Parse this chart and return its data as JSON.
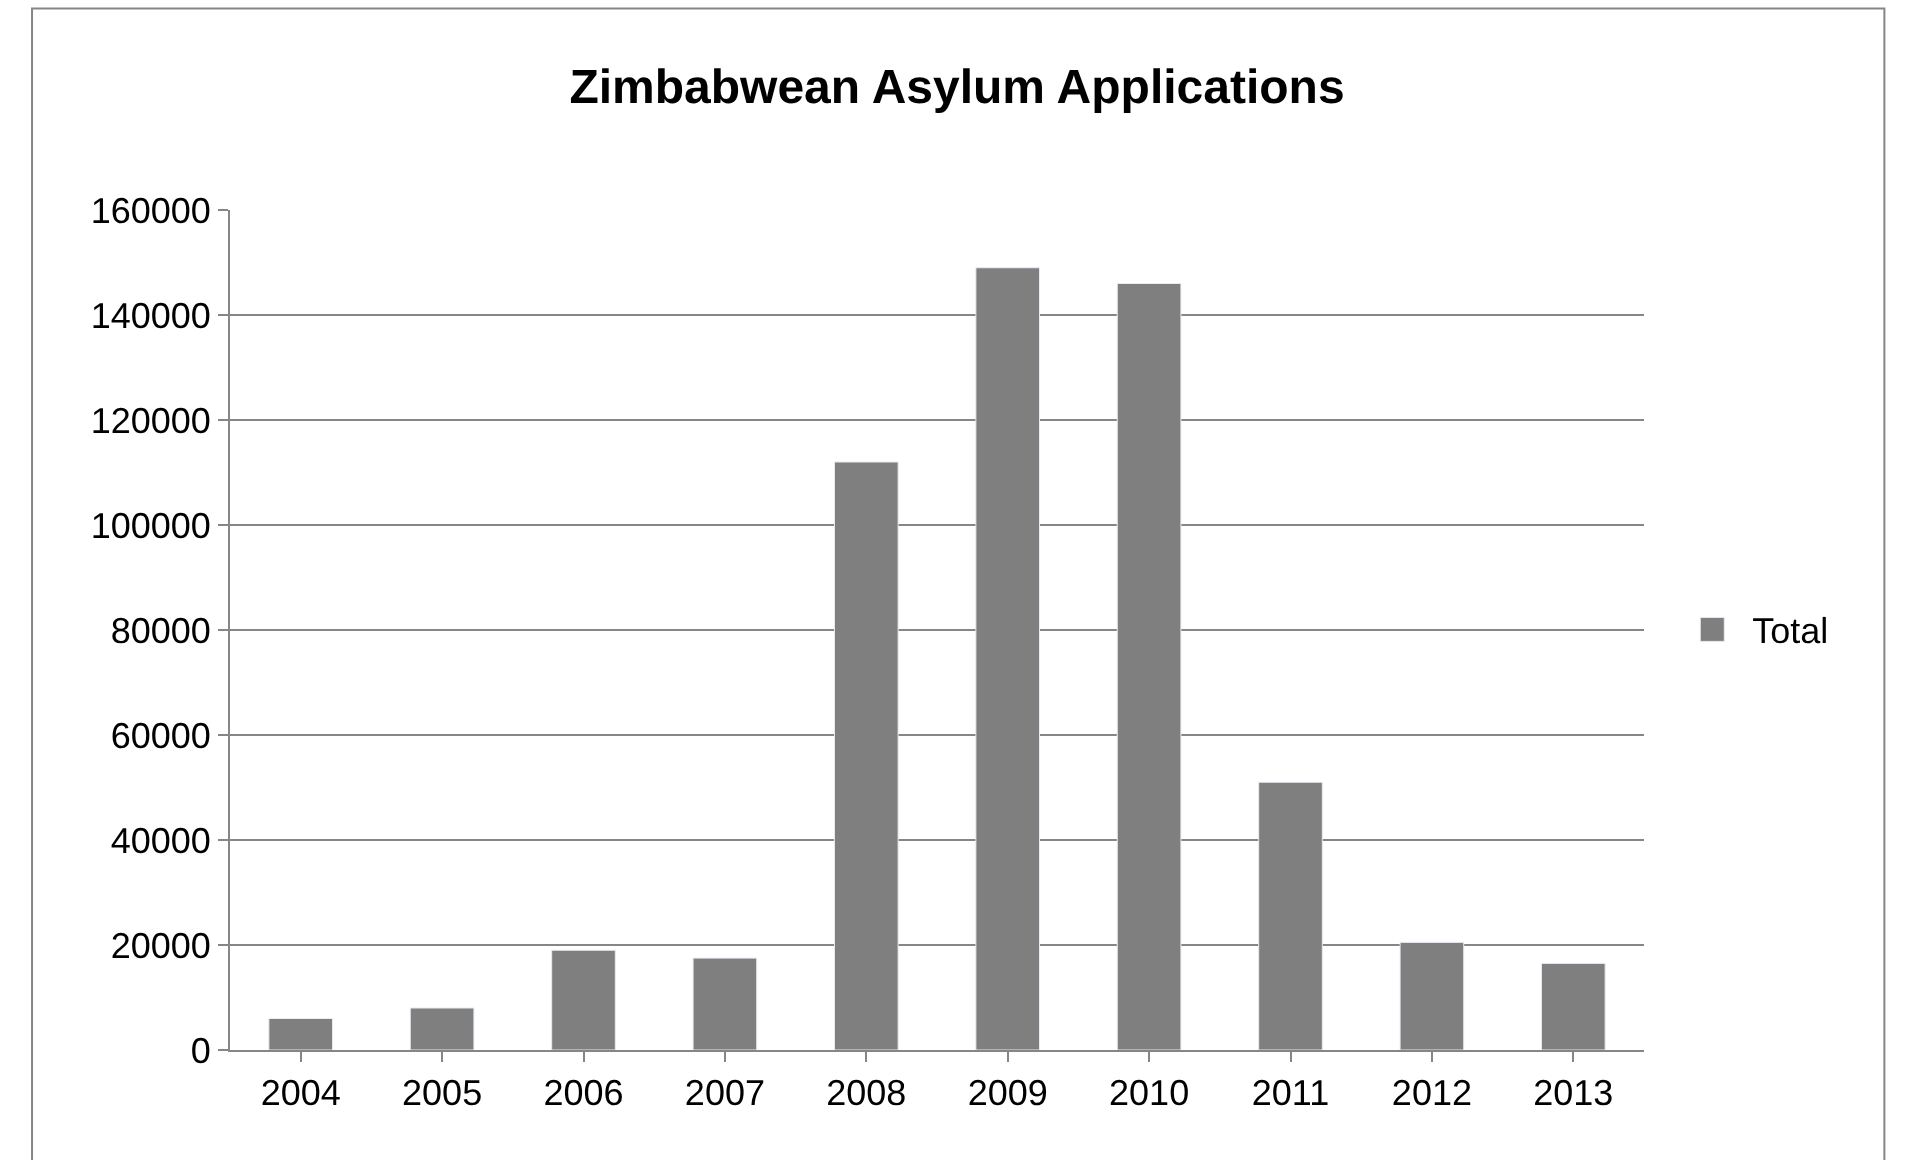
{
  "chart_data": {
    "type": "bar",
    "title": "Zimbabwean Asylum Applications",
    "categories": [
      "2004",
      "2005",
      "2006",
      "2007",
      "2008",
      "2009",
      "2010",
      "2011",
      "2012",
      "2013"
    ],
    "series": [
      {
        "name": "Total",
        "color": "#7f7f7f",
        "values": [
          6000,
          8000,
          19000,
          17500,
          112000,
          149000,
          146000,
          51000,
          20500,
          16500
        ]
      }
    ],
    "ylim": [
      0,
      160000
    ],
    "yticks": [
      0,
      20000,
      40000,
      60000,
      80000,
      100000,
      120000,
      140000,
      160000
    ],
    "grid": "y",
    "legend": "right"
  }
}
